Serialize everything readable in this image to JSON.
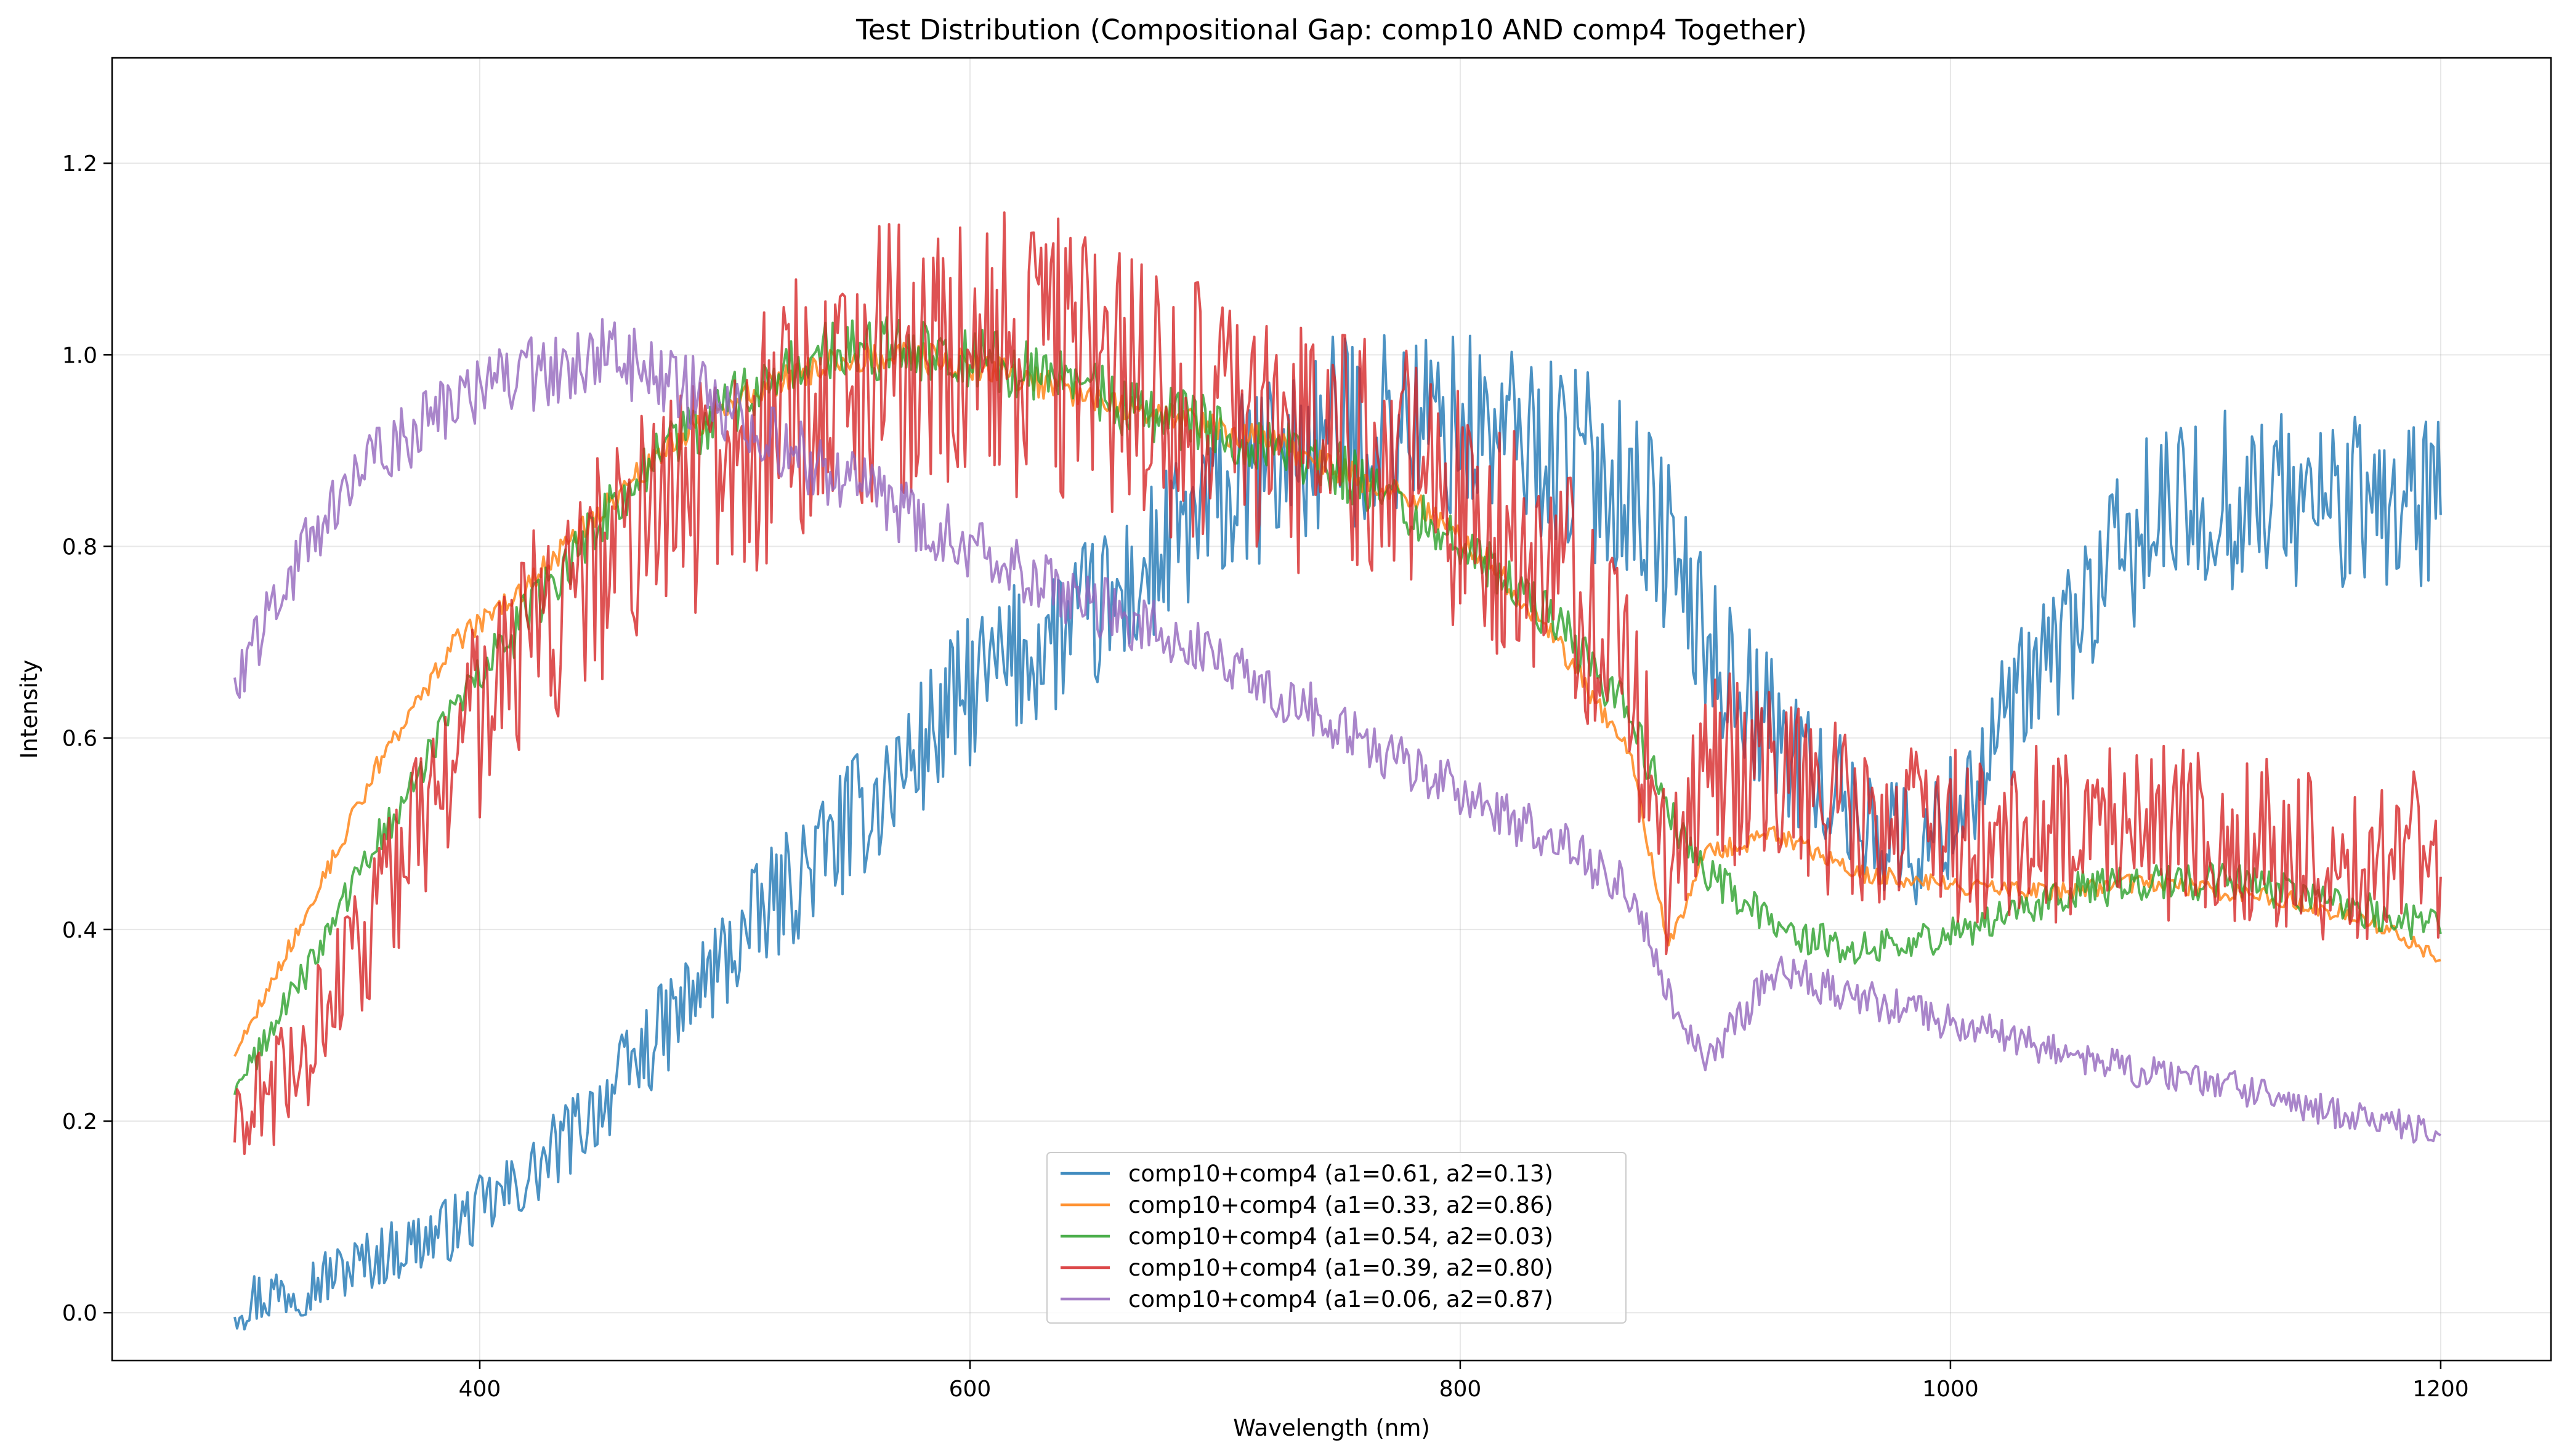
{
  "chart_data": {
    "type": "line",
    "title": "Test Distribution (Compositional Gap: comp10 AND comp4 Together)",
    "xlabel": "Wavelength (nm)",
    "ylabel": "Intensity",
    "xlim": [
      250,
      1245
    ],
    "ylim": [
      -0.05,
      1.31
    ],
    "xticks": [
      400,
      600,
      800,
      1000,
      1200
    ],
    "yticks": [
      0.0,
      0.2,
      0.4,
      0.6,
      0.8,
      1.0,
      1.2
    ],
    "xtick_labels": [
      "400",
      "600",
      "800",
      "1000",
      "1200"
    ],
    "ytick_labels": [
      "0.0",
      "0.2",
      "0.4",
      "0.6",
      "0.8",
      "1.0",
      "1.2"
    ],
    "grid": true,
    "legend_position": "lower center",
    "x": [
      300,
      330,
      360,
      390,
      420,
      450,
      480,
      510,
      540,
      570,
      600,
      630,
      660,
      690,
      720,
      750,
      780,
      810,
      840,
      870,
      885,
      900,
      930,
      960,
      990,
      1020,
      1050,
      1080,
      1110,
      1140,
      1170,
      1200
    ],
    "series": [
      {
        "name": "comp10+comp4 (a1=0.61, a2=0.13)",
        "color": "#1f77b4",
        "values": [
          0.01,
          0.03,
          0.06,
          0.09,
          0.14,
          0.22,
          0.31,
          0.4,
          0.48,
          0.56,
          0.65,
          0.7,
          0.74,
          0.82,
          0.88,
          0.92,
          0.93,
          0.92,
          0.9,
          0.86,
          0.8,
          0.7,
          0.6,
          0.52,
          0.48,
          0.6,
          0.72,
          0.82,
          0.85,
          0.85,
          0.84,
          0.85
        ],
        "noise": 0.08
      },
      {
        "name": "comp10+comp4 (a1=0.33, a2=0.86)",
        "color": "#ff7f0e",
        "values": [
          0.27,
          0.42,
          0.58,
          0.7,
          0.76,
          0.84,
          0.91,
          0.96,
          0.99,
          1.0,
          0.99,
          0.97,
          0.95,
          0.93,
          0.91,
          0.88,
          0.85,
          0.79,
          0.7,
          0.58,
          0.38,
          0.48,
          0.5,
          0.46,
          0.45,
          0.44,
          0.44,
          0.45,
          0.44,
          0.43,
          0.41,
          0.37
        ],
        "noise": 0.012
      },
      {
        "name": "comp10+comp4 (a1=0.54, a2=0.03)",
        "color": "#2ca02c",
        "values": [
          0.23,
          0.36,
          0.5,
          0.63,
          0.73,
          0.83,
          0.91,
          0.96,
          1.0,
          1.01,
          1.0,
          0.98,
          0.95,
          0.93,
          0.91,
          0.88,
          0.84,
          0.78,
          0.72,
          0.62,
          0.52,
          0.46,
          0.4,
          0.38,
          0.39,
          0.41,
          0.44,
          0.45,
          0.45,
          0.44,
          0.42,
          0.4
        ],
        "noise": 0.025
      },
      {
        "name": "comp10+comp4 (a1=0.39, a2=0.80)",
        "color": "#d62728",
        "values": [
          0.18,
          0.28,
          0.42,
          0.58,
          0.7,
          0.78,
          0.85,
          0.9,
          0.96,
          1.0,
          1.0,
          1.0,
          0.98,
          0.94,
          0.92,
          0.9,
          0.87,
          0.82,
          0.78,
          0.65,
          0.45,
          0.58,
          0.55,
          0.52,
          0.5,
          0.5,
          0.5,
          0.5,
          0.5,
          0.48,
          0.47,
          0.48
        ],
        "noise": 0.11
      },
      {
        "name": "comp10+comp4 (a1=0.06, a2=0.87)",
        "color": "#9467bd",
        "values": [
          0.66,
          0.8,
          0.9,
          0.95,
          0.98,
          1.0,
          0.97,
          0.93,
          0.88,
          0.84,
          0.8,
          0.76,
          0.73,
          0.7,
          0.66,
          0.61,
          0.57,
          0.53,
          0.49,
          0.44,
          0.33,
          0.26,
          0.36,
          0.33,
          0.31,
          0.29,
          0.27,
          0.25,
          0.24,
          0.22,
          0.2,
          0.19
        ],
        "noise": 0.03
      }
    ]
  }
}
